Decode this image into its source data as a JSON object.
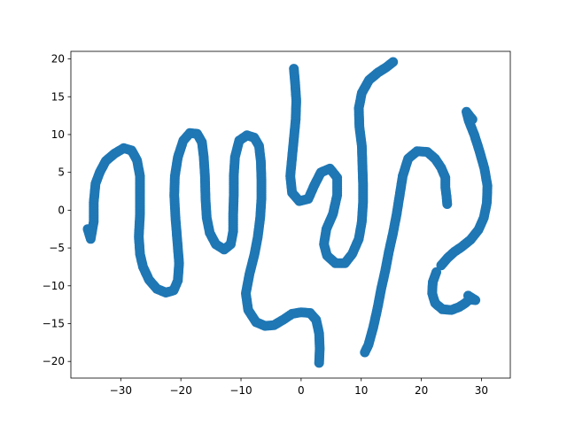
{
  "chart_data": {
    "type": "scatter",
    "title": "",
    "xlabel": "",
    "ylabel": "",
    "xlim": [
      -38.3,
      34.8
    ],
    "ylim": [
      -22.2,
      21.0
    ],
    "xticks": [
      -30,
      -20,
      -10,
      0,
      10,
      20,
      30
    ],
    "yticks": [
      -20,
      -15,
      -10,
      -5,
      0,
      5,
      10,
      15,
      20
    ],
    "xtick_labels": [
      "−30",
      "−20",
      "−10",
      "0",
      "10",
      "20",
      "30"
    ],
    "ytick_labels": [
      "−20",
      "−15",
      "−10",
      "−5",
      "0",
      "5",
      "10",
      "15",
      "20"
    ],
    "grid": false,
    "marker_color": "#1f77b4",
    "series": [
      {
        "points": [
          [
            -35.5,
            -2.5
          ],
          [
            -35.0,
            -3.8
          ],
          [
            -34.5,
            -1.5
          ],
          [
            -34.5,
            1.0
          ],
          [
            -34.2,
            3.5
          ],
          [
            -33.5,
            5.0
          ],
          [
            -32.5,
            6.5
          ],
          [
            -31.0,
            7.5
          ],
          [
            -29.5,
            8.2
          ],
          [
            -28.2,
            7.9
          ],
          [
            -27.3,
            6.6
          ],
          [
            -26.8,
            4.5
          ],
          [
            -26.8,
            2.0
          ],
          [
            -26.8,
            -0.5
          ],
          [
            -27.0,
            -3.5
          ],
          [
            -26.8,
            -5.8
          ],
          [
            -26.3,
            -7.5
          ],
          [
            -25.3,
            -9.2
          ],
          [
            -24.0,
            -10.4
          ],
          [
            -22.5,
            -10.9
          ],
          [
            -21.2,
            -10.6
          ],
          [
            -20.5,
            -9.3
          ],
          [
            -20.3,
            -7.0
          ],
          [
            -20.6,
            -4.0
          ],
          [
            -20.9,
            -1.0
          ],
          [
            -21.1,
            2.0
          ],
          [
            -21.0,
            4.5
          ],
          [
            -20.5,
            7.0
          ],
          [
            -19.6,
            9.2
          ],
          [
            -18.5,
            10.2
          ],
          [
            -17.3,
            10.1
          ],
          [
            -16.5,
            9.0
          ],
          [
            -16.2,
            7.0
          ],
          [
            -16.0,
            4.5
          ],
          [
            -15.9,
            1.5
          ],
          [
            -15.7,
            -1.0
          ],
          [
            -15.2,
            -3.0
          ],
          [
            -14.2,
            -4.5
          ],
          [
            -12.8,
            -5.2
          ],
          [
            -11.7,
            -4.5
          ],
          [
            -11.3,
            -2.8
          ],
          [
            -11.3,
            -0.5
          ],
          [
            -11.2,
            2.0
          ],
          [
            -11.2,
            4.5
          ],
          [
            -11.0,
            7.0
          ],
          [
            -10.3,
            9.2
          ],
          [
            -9.0,
            9.9
          ],
          [
            -7.8,
            9.6
          ],
          [
            -7.0,
            8.5
          ],
          [
            -6.7,
            6.5
          ],
          [
            -6.6,
            4.0
          ],
          [
            -6.6,
            1.5
          ],
          [
            -6.8,
            -1.0
          ],
          [
            -7.2,
            -3.5
          ],
          [
            -7.8,
            -6.0
          ],
          [
            -8.6,
            -8.5
          ],
          [
            -9.2,
            -11.0
          ],
          [
            -8.8,
            -13.2
          ],
          [
            -7.5,
            -14.8
          ],
          [
            -6.0,
            -15.3
          ],
          [
            -4.5,
            -15.2
          ],
          [
            -3.0,
            -14.5
          ],
          [
            -1.5,
            -13.7
          ],
          [
            0.0,
            -13.5
          ],
          [
            1.5,
            -13.6
          ],
          [
            2.5,
            -14.5
          ],
          [
            3.0,
            -16.3
          ],
          [
            3.1,
            -18.3
          ],
          [
            3.0,
            -20.2
          ],
          [
            -1.2,
            18.7
          ],
          [
            -1.0,
            16.8
          ],
          [
            -0.8,
            14.5
          ],
          [
            -0.9,
            12.0
          ],
          [
            -1.2,
            9.5
          ],
          [
            -1.5,
            7.0
          ],
          [
            -1.8,
            4.5
          ],
          [
            -1.5,
            2.3
          ],
          [
            -0.3,
            1.2
          ],
          [
            1.2,
            1.5
          ],
          [
            2.2,
            3.3
          ],
          [
            3.3,
            5.0
          ],
          [
            4.8,
            5.5
          ],
          [
            6.0,
            4.3
          ],
          [
            6.0,
            2.0
          ],
          [
            5.3,
            -0.5
          ],
          [
            4.2,
            -2.5
          ],
          [
            3.8,
            -4.5
          ],
          [
            4.3,
            -6.0
          ],
          [
            5.7,
            -7.0
          ],
          [
            7.3,
            -7.0
          ],
          [
            8.5,
            -5.8
          ],
          [
            9.6,
            -3.8
          ],
          [
            10.1,
            -1.5
          ],
          [
            10.3,
            1.0
          ],
          [
            10.3,
            3.5
          ],
          [
            10.2,
            6.0
          ],
          [
            10.1,
            8.5
          ],
          [
            9.7,
            11.0
          ],
          [
            9.6,
            13.5
          ],
          [
            10.1,
            15.5
          ],
          [
            11.3,
            17.2
          ],
          [
            12.8,
            18.2
          ],
          [
            14.2,
            18.9
          ],
          [
            15.3,
            19.6
          ],
          [
            10.6,
            -18.8
          ],
          [
            11.2,
            -17.8
          ],
          [
            12.0,
            -15.5
          ],
          [
            12.7,
            -13.0
          ],
          [
            13.3,
            -10.5
          ],
          [
            14.0,
            -8.0
          ],
          [
            14.6,
            -5.5
          ],
          [
            15.3,
            -3.0
          ],
          [
            15.9,
            -0.5
          ],
          [
            16.4,
            2.0
          ],
          [
            16.9,
            4.5
          ],
          [
            17.8,
            6.8
          ],
          [
            19.3,
            7.8
          ],
          [
            21.0,
            7.7
          ],
          [
            22.3,
            6.8
          ],
          [
            23.3,
            5.6
          ],
          [
            24.0,
            4.3
          ],
          [
            24.0,
            3.0
          ],
          [
            24.2,
            1.8
          ],
          [
            24.3,
            0.8
          ],
          [
            22.5,
            -8.2
          ],
          [
            21.9,
            -9.5
          ],
          [
            21.8,
            -11.0
          ],
          [
            22.3,
            -12.3
          ],
          [
            23.5,
            -13.1
          ],
          [
            25.0,
            -13.2
          ],
          [
            26.3,
            -12.8
          ],
          [
            27.3,
            -12.3
          ],
          [
            28.0,
            -11.8
          ],
          [
            29.0,
            -11.9
          ],
          [
            27.8,
            -11.3
          ],
          [
            23.3,
            -7.3
          ],
          [
            24.4,
            -6.3
          ],
          [
            25.5,
            -5.5
          ],
          [
            26.8,
            -4.8
          ],
          [
            28.2,
            -3.9
          ],
          [
            29.5,
            -2.6
          ],
          [
            30.4,
            -1.0
          ],
          [
            30.9,
            1.0
          ],
          [
            31.0,
            3.2
          ],
          [
            30.5,
            5.5
          ],
          [
            29.6,
            8.0
          ],
          [
            28.8,
            10.0
          ],
          [
            27.9,
            11.8
          ],
          [
            27.5,
            13.0
          ],
          [
            28.5,
            12.0
          ]
        ]
      }
    ]
  }
}
